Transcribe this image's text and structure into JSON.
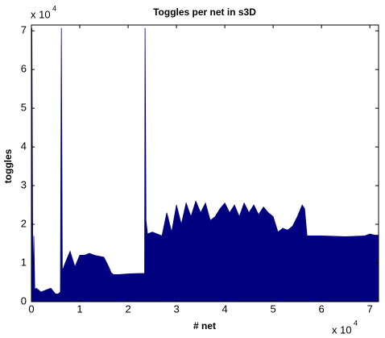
{
  "chart_data": {
    "type": "area",
    "title": "Toggles per net in s3D",
    "xlabel": "# net",
    "ylabel": "toggles",
    "x_multiplier": "x 10",
    "x_exponent": "4",
    "y_multiplier": "x 10",
    "y_exponent": "4",
    "color": "#000080",
    "xlim": [
      0,
      7.18
    ],
    "ylim": [
      0,
      7.15
    ],
    "xticks": [
      0,
      1,
      2,
      3,
      4,
      5,
      6,
      7
    ],
    "yticks": [
      0,
      1,
      2,
      3,
      4,
      5,
      6,
      7
    ],
    "x": [
      0,
      0.01,
      0.03,
      0.05,
      0.07,
      0.1,
      0.2,
      0.3,
      0.4,
      0.5,
      0.55,
      0.6,
      0.62,
      0.64,
      0.7,
      0.8,
      0.9,
      1.0,
      1.1,
      1.2,
      1.3,
      1.5,
      1.6,
      1.65,
      1.7,
      1.8,
      2.0,
      2.2,
      2.34,
      2.35,
      2.37,
      2.4,
      2.5,
      2.7,
      2.8,
      2.9,
      3.0,
      3.1,
      3.2,
      3.3,
      3.4,
      3.5,
      3.6,
      3.7,
      3.8,
      3.9,
      4.0,
      4.1,
      4.2,
      4.3,
      4.4,
      4.5,
      4.6,
      4.7,
      4.8,
      4.9,
      5.0,
      5.1,
      5.2,
      5.3,
      5.4,
      5.5,
      5.6,
      5.65,
      5.7,
      6.0,
      6.5,
      6.9,
      7.0,
      7.1,
      7.18
    ],
    "values": [
      1.75,
      7.07,
      0.5,
      1.7,
      0.3,
      0.35,
      0.25,
      0.3,
      0.35,
      0.2,
      0.2,
      0.25,
      7.07,
      0.8,
      1.0,
      1.3,
      0.9,
      1.2,
      1.2,
      1.25,
      1.2,
      1.15,
      0.9,
      0.75,
      0.7,
      0.7,
      0.72,
      0.73,
      0.73,
      7.07,
      2.1,
      1.75,
      1.8,
      1.7,
      2.3,
      1.8,
      2.5,
      2.0,
      2.55,
      2.2,
      2.6,
      2.3,
      2.55,
      2.1,
      2.2,
      2.4,
      2.55,
      2.3,
      2.5,
      2.2,
      2.55,
      2.3,
      2.5,
      2.25,
      2.45,
      2.3,
      2.2,
      1.8,
      1.9,
      1.85,
      1.95,
      2.2,
      2.5,
      2.4,
      1.7,
      1.7,
      1.68,
      1.7,
      1.75,
      1.72,
      1.72
    ]
  }
}
